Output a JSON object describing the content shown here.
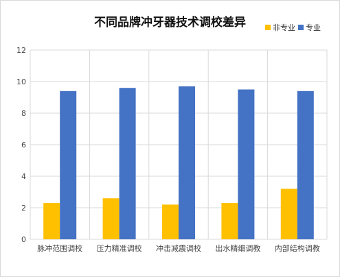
{
  "chart_data": {
    "type": "bar",
    "title": "不同品牌冲牙器技术调校差异",
    "categories": [
      "脉冲范围调校",
      "压力精准调校",
      "冲击减震调校",
      "出水精细调教",
      "内部结构调教"
    ],
    "series": [
      {
        "name": "非专业",
        "color": "#FFC000",
        "values": [
          2.3,
          2.6,
          2.2,
          2.3,
          3.2
        ]
      },
      {
        "name": "专业",
        "color": "#4472C4",
        "values": [
          9.4,
          9.6,
          9.7,
          9.5,
          9.4
        ]
      }
    ],
    "ylim": [
      0,
      12
    ],
    "yticks": [
      0,
      2,
      4,
      6,
      8,
      10,
      12
    ],
    "grid": true,
    "legend_position": "top-right"
  }
}
